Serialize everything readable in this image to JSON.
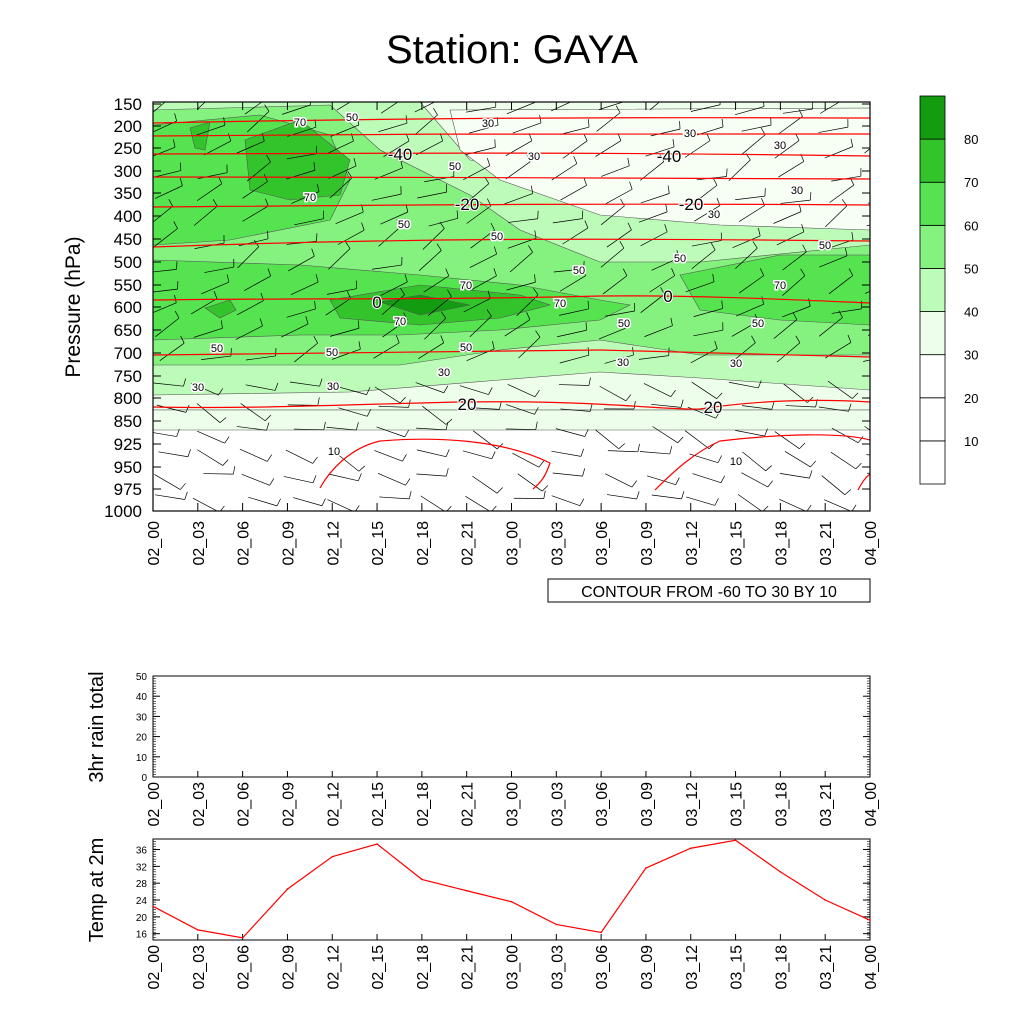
{
  "title": "Station: GAYA",
  "colors": {
    "levels": [
      "#ffffff",
      "#ffffff",
      "#ffffff",
      "#edfeea",
      "#bdfbb9",
      "#85f17f",
      "#55e34f",
      "#33c42c",
      "#139c0f"
    ],
    "temp_contour": "#ff0000",
    "temp_line": "#ff0000"
  },
  "chart_data": [
    {
      "type": "heatmap",
      "title": "Station: GAYA",
      "xlabel": "",
      "ylabel": "Pressure (hPa)",
      "x_ticks": [
        "02_00",
        "02_03",
        "02_06",
        "02_09",
        "02_12",
        "02_15",
        "02_18",
        "02_21",
        "03_00",
        "03_03",
        "03_06",
        "03_09",
        "03_12",
        "03_15",
        "03_18",
        "03_21",
        "04_00"
      ],
      "y_ticks": [
        "150",
        "200",
        "250",
        "300",
        "350",
        "400",
        "450",
        "500",
        "550",
        "600",
        "650",
        "700",
        "750",
        "800",
        "850",
        "925",
        "950",
        "975",
        "1000"
      ],
      "colorbar": {
        "labels": [
          "10",
          "20",
          "30",
          "40",
          "50",
          "60",
          "70",
          "80"
        ]
      },
      "field_label": "CONTOUR FROM -60 TO 30 BY 10",
      "rh_contour_labels": [
        "70",
        "50",
        "30",
        "30",
        "50",
        "70",
        "50",
        "70",
        "50",
        "30",
        "50",
        "70",
        "50",
        "70",
        "50",
        "50",
        "50",
        "70",
        "50",
        "30",
        "30",
        "30",
        "30",
        "30",
        "10",
        "10"
      ],
      "temp_contour_labels": [
        "-40",
        "-40",
        "-20",
        "-20",
        "0",
        "0",
        "20",
        "20"
      ]
    },
    {
      "type": "line",
      "ylabel": "3hr rain total",
      "ylim": [
        0,
        50
      ],
      "y_ticks": [
        "0",
        "10",
        "20",
        "30",
        "40",
        "50"
      ],
      "x_ticks": [
        "02_00",
        "02_03",
        "02_06",
        "02_09",
        "02_12",
        "02_15",
        "02_18",
        "02_21",
        "03_00",
        "03_03",
        "03_06",
        "03_09",
        "03_12",
        "03_15",
        "03_18",
        "03_21",
        "04_00"
      ],
      "values": []
    },
    {
      "type": "line",
      "ylabel": "Temp at 2m",
      "ylim": [
        14.5,
        38.5
      ],
      "y_ticks": [
        "16",
        "20",
        "24",
        "28",
        "32",
        "36"
      ],
      "x_ticks": [
        "02_00",
        "02_03",
        "02_06",
        "02_09",
        "02_12",
        "02_15",
        "02_18",
        "02_21",
        "03_00",
        "03_03",
        "03_06",
        "03_09",
        "03_12",
        "03_15",
        "03_18",
        "03_21",
        "04_00"
      ],
      "values": [
        22.5,
        16.9,
        15.0,
        26.6,
        34.3,
        37.3,
        28.9,
        26.2,
        23.6,
        18.2,
        16.3,
        31.6,
        36.3,
        38.2,
        30.7,
        24.0,
        19.2
      ]
    }
  ]
}
